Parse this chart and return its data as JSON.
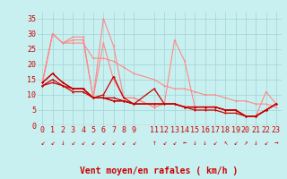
{
  "bg_color": "#c8f0f0",
  "grid_color": "#a8d8d8",
  "xlabel": "Vent moyen/en rafales ( km/h )",
  "xlabel_color": "#cc0000",
  "xlabel_fontsize": 7,
  "ytick_labels": [
    "0",
    "5",
    "10",
    "15",
    "20",
    "25",
    "30",
    "35"
  ],
  "ytick_vals": [
    0,
    5,
    10,
    15,
    20,
    25,
    30,
    35
  ],
  "xtick_vals": [
    0,
    1,
    2,
    3,
    4,
    5,
    6,
    7,
    8,
    9,
    11,
    12,
    13,
    14,
    15,
    16,
    17,
    18,
    19,
    20,
    21,
    22,
    23
  ],
  "xtick_labels": [
    "0",
    "1",
    "2",
    "3",
    "4",
    "5",
    "6",
    "7",
    "8",
    "9",
    "11",
    "12",
    "13",
    "14",
    "15",
    "16",
    "17",
    "18",
    "19",
    "20",
    "21",
    "22",
    "23"
  ],
  "xlim": [
    -0.5,
    23.5
  ],
  "ylim": [
    0,
    37
  ],
  "lines_light": [
    {
      "x": [
        0,
        1,
        2,
        3,
        4,
        5,
        6,
        7,
        8,
        9,
        11,
        12,
        13,
        14,
        15,
        16,
        17,
        18,
        19,
        20,
        21,
        22,
        23
      ],
      "y": [
        14,
        30,
        27,
        27,
        27,
        22,
        22,
        21,
        19,
        17,
        15,
        13,
        12,
        12,
        11,
        10,
        10,
        9,
        8,
        8,
        7,
        7,
        6
      ]
    },
    {
      "x": [
        0,
        1,
        2,
        3,
        4,
        5,
        6,
        7,
        8,
        9,
        11,
        12,
        13,
        14,
        15,
        16,
        17,
        18,
        19,
        20,
        21,
        22,
        23
      ],
      "y": [
        14,
        30,
        27,
        29,
        29,
        9,
        35,
        26,
        9,
        9,
        6,
        7,
        28,
        21,
        6,
        6,
        6,
        5,
        5,
        3,
        3,
        11,
        7
      ]
    },
    {
      "x": [
        0,
        1,
        2,
        3,
        4,
        5,
        6,
        7,
        8,
        9,
        11,
        12,
        13,
        14,
        15,
        16,
        17,
        18,
        19,
        20,
        21,
        22,
        23
      ],
      "y": [
        14,
        30,
        27,
        28,
        28,
        9,
        27,
        15,
        9,
        9,
        6,
        7,
        7,
        6,
        6,
        6,
        6,
        5,
        5,
        3,
        3,
        5,
        7
      ]
    }
  ],
  "lines_dark": [
    {
      "x": [
        0,
        1,
        2,
        3,
        4,
        5,
        6,
        7,
        8,
        9,
        11,
        12,
        13,
        14,
        15,
        16,
        17,
        18,
        19,
        20,
        21,
        22,
        23
      ],
      "y": [
        14,
        17,
        14,
        12,
        12,
        9,
        9,
        8,
        8,
        7,
        7,
        7,
        7,
        6,
        6,
        6,
        6,
        5,
        5,
        3,
        3,
        5,
        7
      ]
    },
    {
      "x": [
        0,
        1,
        2,
        3,
        4,
        5,
        6,
        7,
        8,
        9,
        11,
        12,
        13,
        14,
        15,
        16,
        17,
        18,
        19,
        20,
        21,
        22,
        23
      ],
      "y": [
        13,
        14,
        13,
        11,
        11,
        9,
        9,
        8,
        8,
        7,
        7,
        7,
        7,
        6,
        6,
        6,
        6,
        5,
        5,
        3,
        3,
        5,
        7
      ]
    },
    {
      "x": [
        0,
        1,
        2,
        3,
        4,
        5,
        6,
        7,
        8,
        9,
        11,
        12,
        13,
        14,
        15,
        16,
        17,
        18,
        19,
        20,
        21,
        22,
        23
      ],
      "y": [
        14,
        17,
        14,
        12,
        12,
        9,
        10,
        16,
        9,
        7,
        12,
        7,
        7,
        6,
        6,
        6,
        6,
        5,
        5,
        3,
        3,
        5,
        7
      ]
    },
    {
      "x": [
        0,
        1,
        2,
        3,
        4,
        5,
        6,
        7,
        8,
        9,
        11,
        12,
        13,
        14,
        15,
        16,
        17,
        18,
        19,
        20,
        21,
        22,
        23
      ],
      "y": [
        13,
        15,
        13,
        12,
        12,
        9,
        9,
        9,
        8,
        7,
        7,
        7,
        7,
        6,
        5,
        5,
        5,
        4,
        4,
        3,
        3,
        5,
        7
      ]
    }
  ],
  "light_color": "#ff8888",
  "dark_color": "#cc0000",
  "arrows": [
    "↙",
    "↙",
    "↓",
    "↙",
    "↙",
    "↙",
    "↙",
    "↙",
    "↙",
    "↙",
    "↑",
    "↙",
    "↙",
    "←",
    "↓",
    "↓",
    "↙",
    "↖",
    "↙",
    "↗",
    "↓",
    "↙",
    "→"
  ],
  "arrow_color": "#cc0000",
  "tick_color": "#cc0000",
  "tick_fontsize": 6,
  "lw_light": 0.8,
  "lw_dark": 0.9,
  "marker_size": 2.0
}
